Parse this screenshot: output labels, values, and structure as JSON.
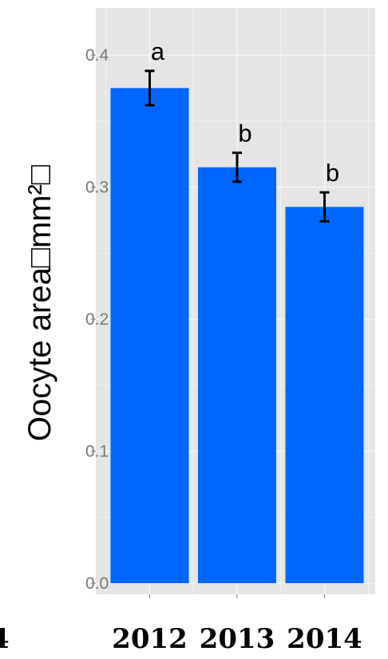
{
  "chart_data": {
    "type": "bar",
    "ylabel": "Oocyte area□mm²□",
    "ylim": [
      0,
      0.43
    ],
    "yticks": [
      "0.0",
      "0.1",
      "0.2",
      "0.3",
      "0.4"
    ],
    "categories": [
      "2012",
      "2013",
      "2014"
    ],
    "values": [
      0.375,
      0.315,
      0.285
    ],
    "errors": [
      0.013,
      0.011,
      0.011
    ],
    "significance": [
      "a",
      "b",
      "b"
    ],
    "partial_left_label": "4",
    "grid": true
  },
  "colors": {
    "bar": "#0066ff",
    "panel": "#e5e5e5",
    "grid": "#f5f5f5"
  }
}
